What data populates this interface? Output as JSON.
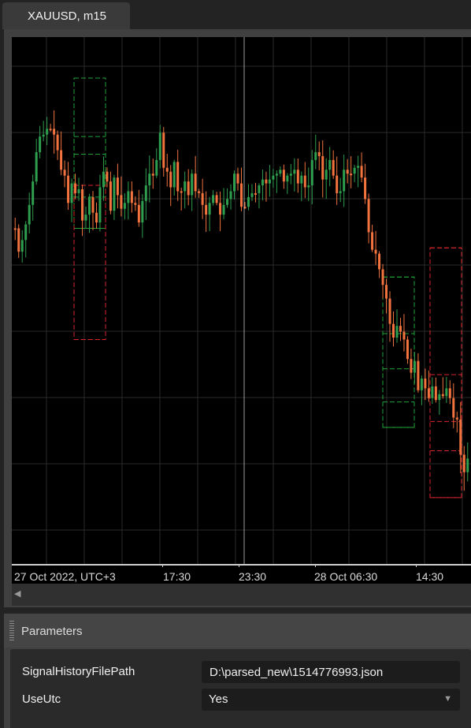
{
  "tab": {
    "title": "XAUUSD, m15"
  },
  "chart": {
    "colors": {
      "up": "#2e9e4f",
      "down": "#f2733d",
      "grid": "#2a2a2a",
      "buy_box": "#21a33a",
      "sell_box": "#d9252c",
      "crosshair": "#cfcfcf"
    },
    "price_path": [
      98,
      110,
      104,
      96,
      86,
      74,
      59,
      51,
      50,
      47,
      47,
      50,
      58,
      68,
      71,
      85,
      75,
      80,
      78,
      94,
      91,
      82,
      90,
      95,
      77,
      69,
      74,
      89,
      72,
      81,
      88,
      85,
      79,
      85,
      86,
      95,
      84,
      76,
      70,
      71,
      63,
      49,
      67,
      69,
      77,
      64,
      79,
      79,
      74,
      81,
      70,
      79,
      80,
      86,
      91,
      85,
      81,
      85,
      91,
      86,
      83,
      79,
      70,
      75,
      87,
      87,
      82,
      80,
      80,
      76,
      73,
      75,
      73,
      71,
      70,
      68,
      74,
      71,
      70,
      68,
      75,
      71,
      77,
      76,
      63,
      59,
      61,
      73,
      68,
      63,
      71,
      80,
      79,
      68,
      70,
      70,
      67,
      66,
      72,
      83,
      100,
      109,
      111,
      119,
      127,
      134,
      147,
      154,
      148,
      151,
      155,
      165,
      172,
      166,
      181,
      175,
      180,
      185,
      179,
      186,
      183,
      184,
      180,
      185,
      195,
      196,
      214,
      223,
      216
    ],
    "signal_boxes": [
      {
        "type": "buy",
        "levels": [
          21,
          60,
          51,
          82,
          98
        ]
      },
      {
        "type": "sell",
        "levels": [
          155,
          76
        ]
      },
      {
        "type": "buy",
        "levels": [
          123,
          152,
          170,
          187,
          200
        ]
      },
      {
        "type": "sell",
        "levels": [
          108,
          236,
          173,
          197,
          212
        ]
      }
    ]
  },
  "time_axis": {
    "labels": [
      "27 Oct 2022, UTC+3",
      "17:30",
      "23:30",
      "28 Oct 06:30",
      "14:30"
    ]
  },
  "parameters": {
    "title": "Parameters",
    "rows": [
      {
        "label": "SignalHistoryFilePath",
        "value": "D:\\parsed_new\\1514776993.json"
      },
      {
        "label": "UseUtc",
        "value": "Yes"
      }
    ]
  }
}
